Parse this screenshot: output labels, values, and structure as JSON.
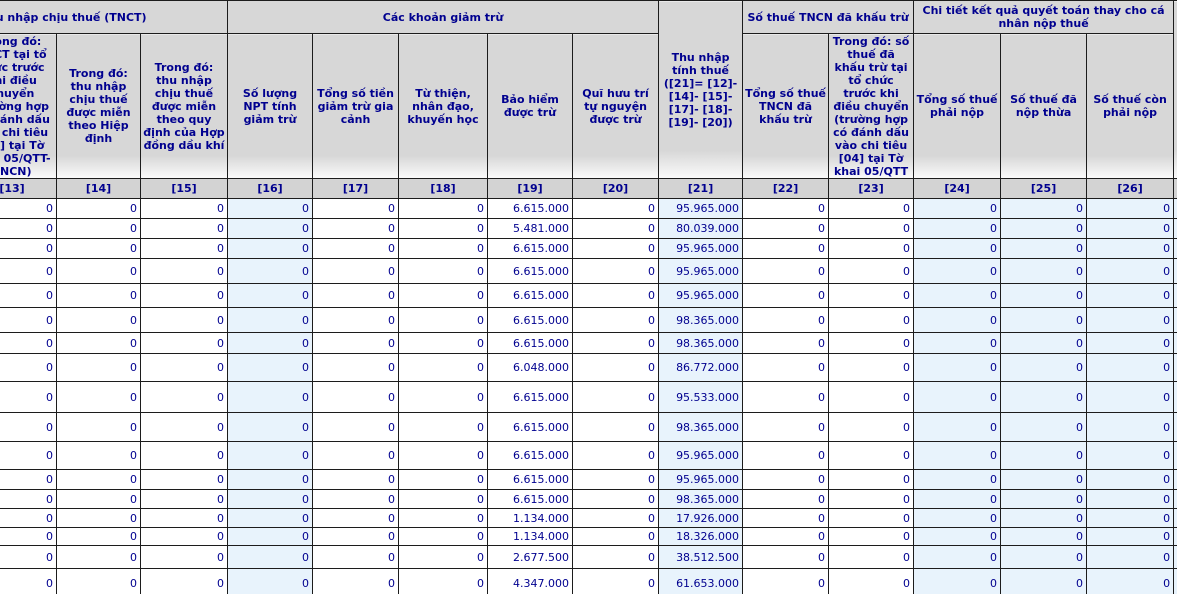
{
  "colors": {
    "header_bg": "#d7d7d7",
    "index_bg": "#d3d3d3",
    "highlight_bg": "#e8f3fc",
    "text": "#00008f"
  },
  "table": {
    "groups": {
      "tnct": "Thu nhập chịu thuế (TNCT)",
      "giam_tru": "Các khoản giảm trừ",
      "khau_tru": "Số thuế TNCN đã khấu trừ",
      "quyet_toan": "Chi tiết kết quả quyết toán thay cho cá nhân nộp thuế"
    },
    "columns": [
      {
        "id": "",
        "label": ""
      },
      {
        "id": "[13]",
        "label": "Trong đó: TNCT tại tổ chức trước khi điều chuyển (trường hợp có đánh dấu vào chi tiêu [04] tại Tờ khai 05/QTT-TNCN)"
      },
      {
        "id": "[14]",
        "label": "Trong đó: thu nhập chịu thuế được miễn theo Hiệp định"
      },
      {
        "id": "[15]",
        "label": "Trong đó: thu nhập chịu thuế được miễn theo quy định của Hợp đồng dầu khí"
      },
      {
        "id": "[16]",
        "label": "Số lượng NPT tính giảm trừ"
      },
      {
        "id": "[17]",
        "label": "Tổng số tiền giảm trừ gia cảnh"
      },
      {
        "id": "[18]",
        "label": "Từ thiện, nhân đạo, khuyến học"
      },
      {
        "id": "[19]",
        "label": "Bảo hiểm được trừ"
      },
      {
        "id": "[20]",
        "label": "Quĩ hưu trí tự nguyện được trừ"
      },
      {
        "id": "[21]",
        "label": "Thu nhập tính thuế ([21]= [12]-[14]- [15]-[17]- [18]-[19]- [20])"
      },
      {
        "id": "[22]",
        "label": "Tổng số thuế TNCN đã khấu trừ"
      },
      {
        "id": "[23]",
        "label": "Trong đó: số thuế đã khấu trừ tại tổ chức trước khi điều chuyển (trường hợp có đánh dấu vào chi tiêu [04] tại Tờ khai 05/QTT"
      },
      {
        "id": "[24]",
        "label": "Tổng số thuế phải nộp"
      },
      {
        "id": "[25]",
        "label": "Số thuế đã nộp thừa"
      },
      {
        "id": "[26]",
        "label": "Số thuế còn phải nộp"
      },
      {
        "id": "",
        "label": ""
      }
    ],
    "rows": [
      [
        "0",
        "0",
        "0",
        "0",
        "0",
        "0",
        "6.615.000",
        "0",
        "95.965.000",
        "0",
        "0",
        "0",
        "0",
        "0"
      ],
      [
        "0",
        "0",
        "0",
        "0",
        "0",
        "0",
        "5.481.000",
        "0",
        "80.039.000",
        "0",
        "0",
        "0",
        "0",
        "0"
      ],
      [
        "0",
        "0",
        "0",
        "0",
        "0",
        "0",
        "6.615.000",
        "0",
        "95.965.000",
        "0",
        "0",
        "0",
        "0",
        "0"
      ],
      [
        "0",
        "0",
        "0",
        "0",
        "0",
        "0",
        "6.615.000",
        "0",
        "95.965.000",
        "0",
        "0",
        "0",
        "0",
        "0"
      ],
      [
        "0",
        "0",
        "0",
        "0",
        "0",
        "0",
        "6.615.000",
        "0",
        "95.965.000",
        "0",
        "0",
        "0",
        "0",
        "0"
      ],
      [
        "0",
        "0",
        "0",
        "0",
        "0",
        "0",
        "6.615.000",
        "0",
        "98.365.000",
        "0",
        "0",
        "0",
        "0",
        "0"
      ],
      [
        "0",
        "0",
        "0",
        "0",
        "0",
        "0",
        "6.615.000",
        "0",
        "98.365.000",
        "0",
        "0",
        "0",
        "0",
        "0"
      ],
      [
        "0",
        "0",
        "0",
        "0",
        "0",
        "0",
        "6.048.000",
        "0",
        "86.772.000",
        "0",
        "0",
        "0",
        "0",
        "0"
      ],
      [
        "0",
        "0",
        "0",
        "0",
        "0",
        "0",
        "6.615.000",
        "0",
        "95.533.000",
        "0",
        "0",
        "0",
        "0",
        "0"
      ],
      [
        "0",
        "0",
        "0",
        "0",
        "0",
        "0",
        "6.615.000",
        "0",
        "98.365.000",
        "0",
        "0",
        "0",
        "0",
        "0"
      ],
      [
        "0",
        "0",
        "0",
        "0",
        "0",
        "0",
        "6.615.000",
        "0",
        "95.965.000",
        "0",
        "0",
        "0",
        "0",
        "0"
      ],
      [
        "0",
        "0",
        "0",
        "0",
        "0",
        "0",
        "6.615.000",
        "0",
        "95.965.000",
        "0",
        "0",
        "0",
        "0",
        "0"
      ],
      [
        "0",
        "0",
        "0",
        "0",
        "0",
        "0",
        "6.615.000",
        "0",
        "98.365.000",
        "0",
        "0",
        "0",
        "0",
        "0"
      ],
      [
        "0",
        "0",
        "0",
        "0",
        "0",
        "0",
        "1.134.000",
        "0",
        "17.926.000",
        "0",
        "0",
        "0",
        "0",
        "0"
      ],
      [
        "0",
        "0",
        "0",
        "0",
        "0",
        "0",
        "1.134.000",
        "0",
        "18.326.000",
        "0",
        "0",
        "0",
        "0",
        "0"
      ],
      [
        "0",
        "0",
        "0",
        "0",
        "0",
        "0",
        "2.677.500",
        "0",
        "38.512.500",
        "0",
        "0",
        "0",
        "0",
        "0"
      ],
      [
        "0",
        "0",
        "0",
        "0",
        "0",
        "0",
        "4.347.000",
        "0",
        "61.653.000",
        "0",
        "0",
        "0",
        "0",
        "0"
      ]
    ]
  }
}
